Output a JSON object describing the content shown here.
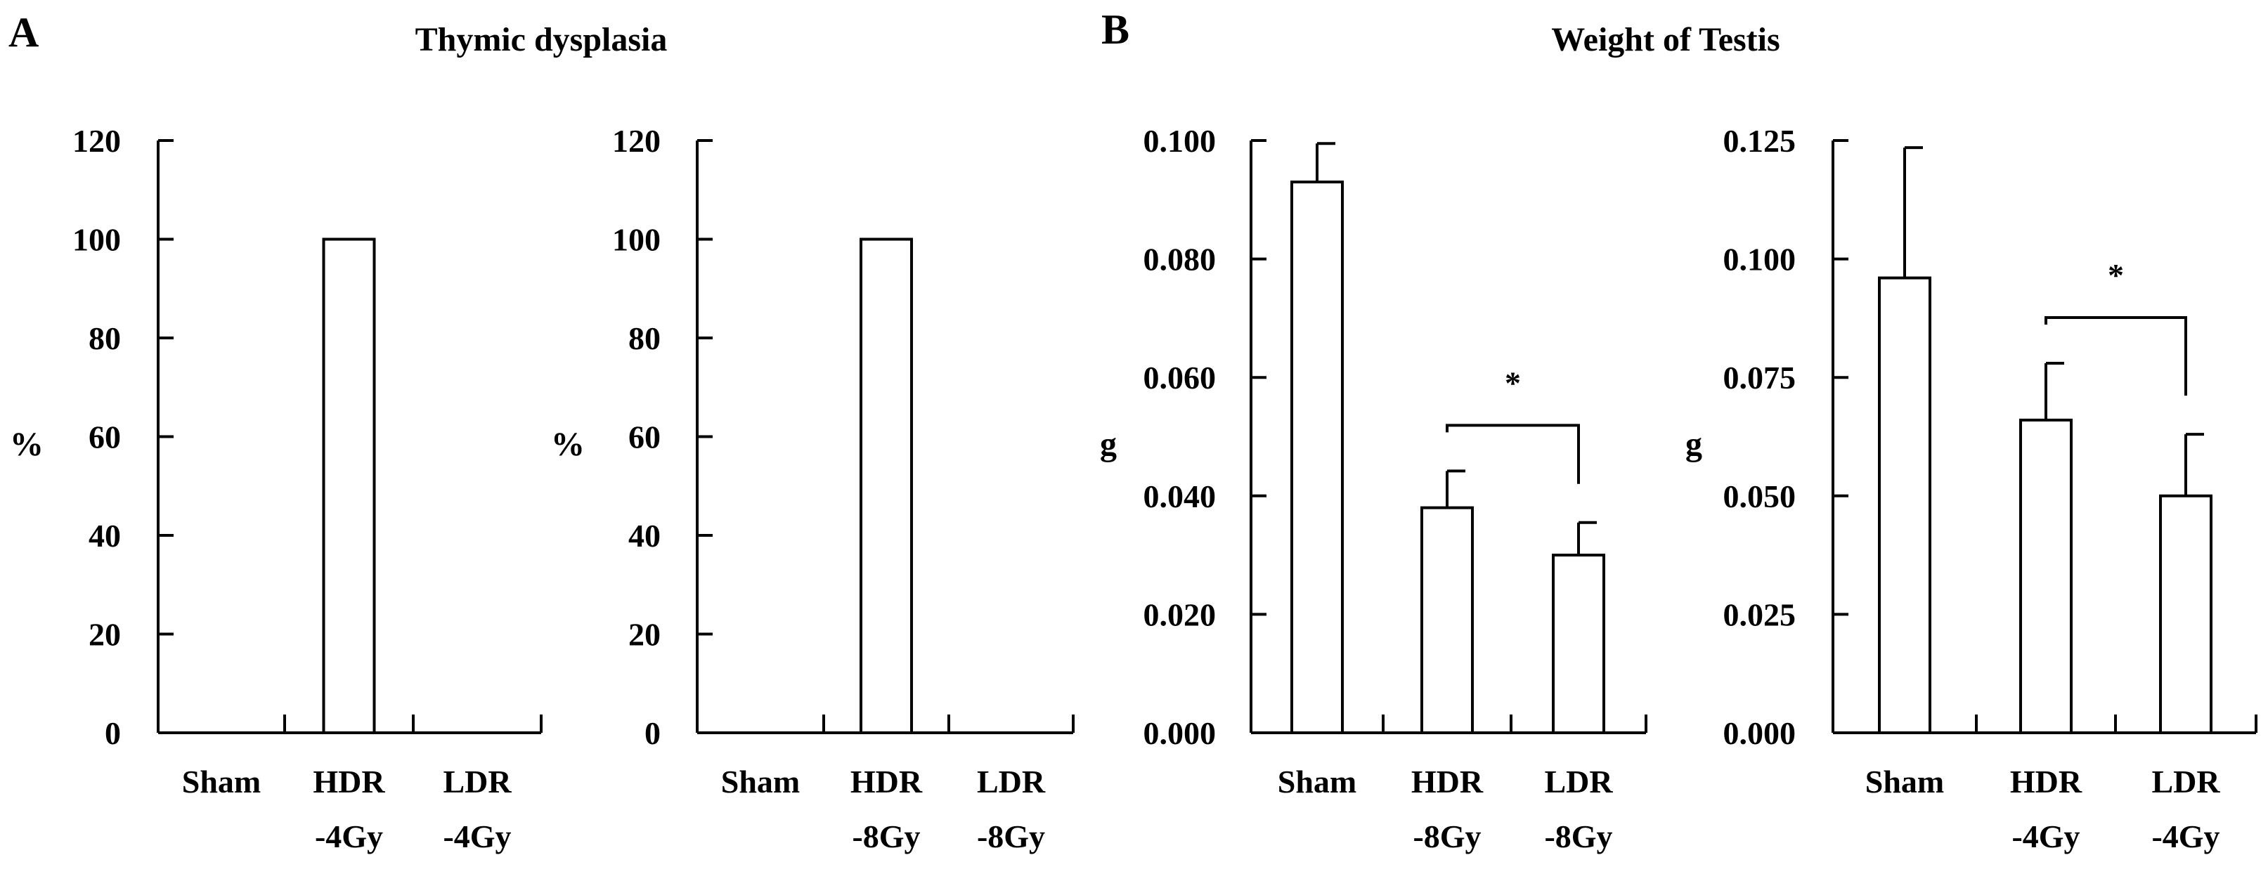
{
  "figure": {
    "panel_a": {
      "letter": "A",
      "title": "Thymic dysplasia"
    },
    "panel_b": {
      "letter": "B",
      "title": "Weight of Testis"
    }
  },
  "colors": {
    "bar_fill": "#ffffff",
    "stroke": "#000000",
    "background": "#ffffff"
  },
  "chart_data": [
    {
      "id": "a1",
      "type": "bar",
      "title": "Thymic dysplasia",
      "ylabel": "%",
      "ylim": [
        0,
        120
      ],
      "yticks": [
        "0",
        "20",
        "40",
        "60",
        "80",
        "100",
        "120"
      ],
      "categories": [
        [
          "Sham"
        ],
        [
          "HDR",
          "-4Gy"
        ],
        [
          "LDR",
          "-4Gy"
        ]
      ],
      "values": [
        0,
        100,
        0
      ]
    },
    {
      "id": "a2",
      "type": "bar",
      "title": "Thymic dysplasia",
      "ylabel": "%",
      "ylim": [
        0,
        120
      ],
      "yticks": [
        "0",
        "20",
        "40",
        "60",
        "80",
        "100",
        "120"
      ],
      "categories": [
        [
          "Sham"
        ],
        [
          "HDR",
          "-8Gy"
        ],
        [
          "LDR",
          "-8Gy"
        ]
      ],
      "values": [
        0,
        100,
        0
      ]
    },
    {
      "id": "b1",
      "type": "bar",
      "title": "Weight of Testis",
      "ylabel": "g",
      "ylim": [
        0,
        0.1
      ],
      "yticks": [
        "0.000",
        "0.020",
        "0.040",
        "0.060",
        "0.080",
        "0.100"
      ],
      "categories": [
        [
          "Sham"
        ],
        [
          "HDR",
          "-8Gy"
        ],
        [
          "LDR",
          "-8Gy"
        ]
      ],
      "values": [
        0.093,
        0.038,
        0.03
      ],
      "errors": [
        0.0065,
        0.0062,
        0.0055
      ],
      "significance": {
        "between": [
          1,
          2
        ],
        "label": "*"
      }
    },
    {
      "id": "b2",
      "type": "bar",
      "title": "Weight of Testis",
      "ylabel": "g",
      "ylim": [
        0,
        0.125
      ],
      "yticks": [
        "0.000",
        "0.025",
        "0.050",
        "0.075",
        "0.100",
        "0.125"
      ],
      "categories": [
        [
          "Sham"
        ],
        [
          "HDR",
          "-4Gy"
        ],
        [
          "LDR",
          "-4Gy"
        ]
      ],
      "values": [
        0.096,
        0.066,
        0.05
      ],
      "errors": [
        0.0275,
        0.012,
        0.013
      ],
      "significance": {
        "between": [
          1,
          2
        ],
        "label": "*"
      }
    }
  ]
}
